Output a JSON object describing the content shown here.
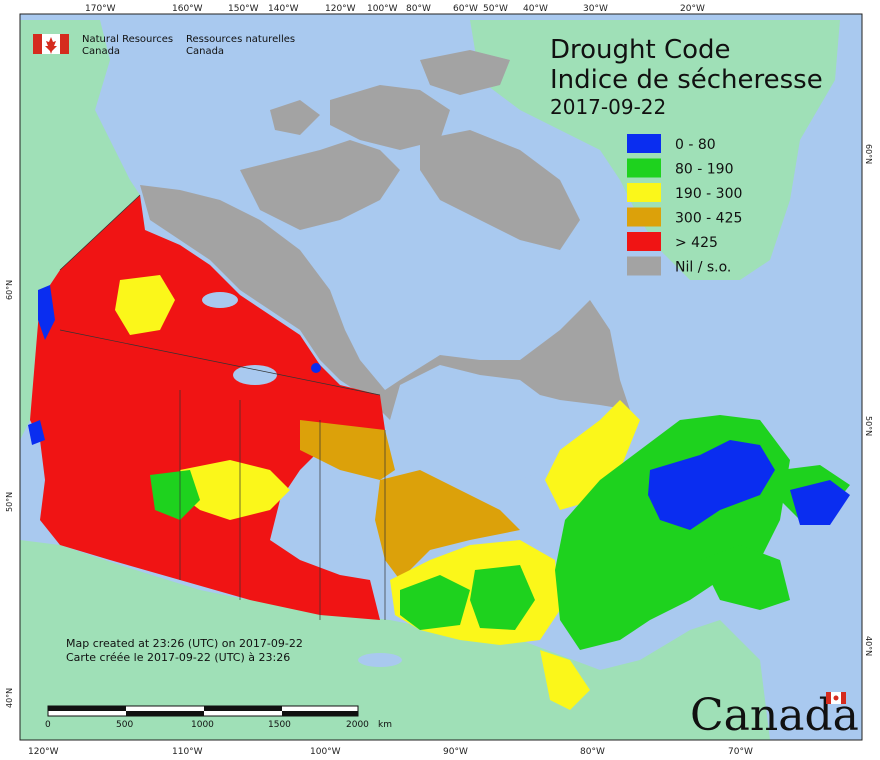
{
  "map": {
    "title_en": "Drought Code",
    "title_fr": "Indice de sécheresse",
    "date": "2017-09-22",
    "colors": {
      "ocean": "#a9c9ef",
      "foreign_land": "#9fe0b7",
      "arctic_gray": "#a3a3a3",
      "greenland": "#9fe0b7"
    },
    "legend": [
      {
        "label": "0 - 80",
        "color": "#0a2df0"
      },
      {
        "label": "80 - 190",
        "color": "#1ed21e"
      },
      {
        "label": "190 - 300",
        "color": "#fbf71a"
      },
      {
        "label": "300 - 425",
        "color": "#dca10a"
      },
      {
        "label": "> 425",
        "color": "#f01414"
      },
      {
        "label": "Nil / s.o.",
        "color": "#a3a3a3"
      }
    ],
    "credit": {
      "en_line1": "Natural Resources",
      "en_line2": "Canada",
      "fr_line1": "Ressources naturelles",
      "fr_line2": "Canada"
    },
    "footer": {
      "en": "Map created at 23:26 (UTC) on 2017-09-22",
      "fr": "Carte créée le 2017-09-22 (UTC) à 23:26"
    },
    "scale_labels": [
      "0",
      "500",
      "1000",
      "1500",
      "2000",
      "km"
    ],
    "wordmark": "Canada",
    "top_ticks": [
      "170°W",
      "160°W",
      "150°W",
      "140°W",
      "120°W",
      "100°W",
      "80°W",
      "60°W",
      "50°W",
      "40°W",
      "30°W",
      "20°W"
    ],
    "bottom_ticks": [
      "120°W",
      "110°W",
      "100°W",
      "90°W",
      "80°W",
      "70°W"
    ],
    "left_ticks": [
      "60°N",
      "50°N",
      "40°N"
    ],
    "right_ticks": [
      "60°N",
      "50°N",
      "40°N"
    ]
  }
}
